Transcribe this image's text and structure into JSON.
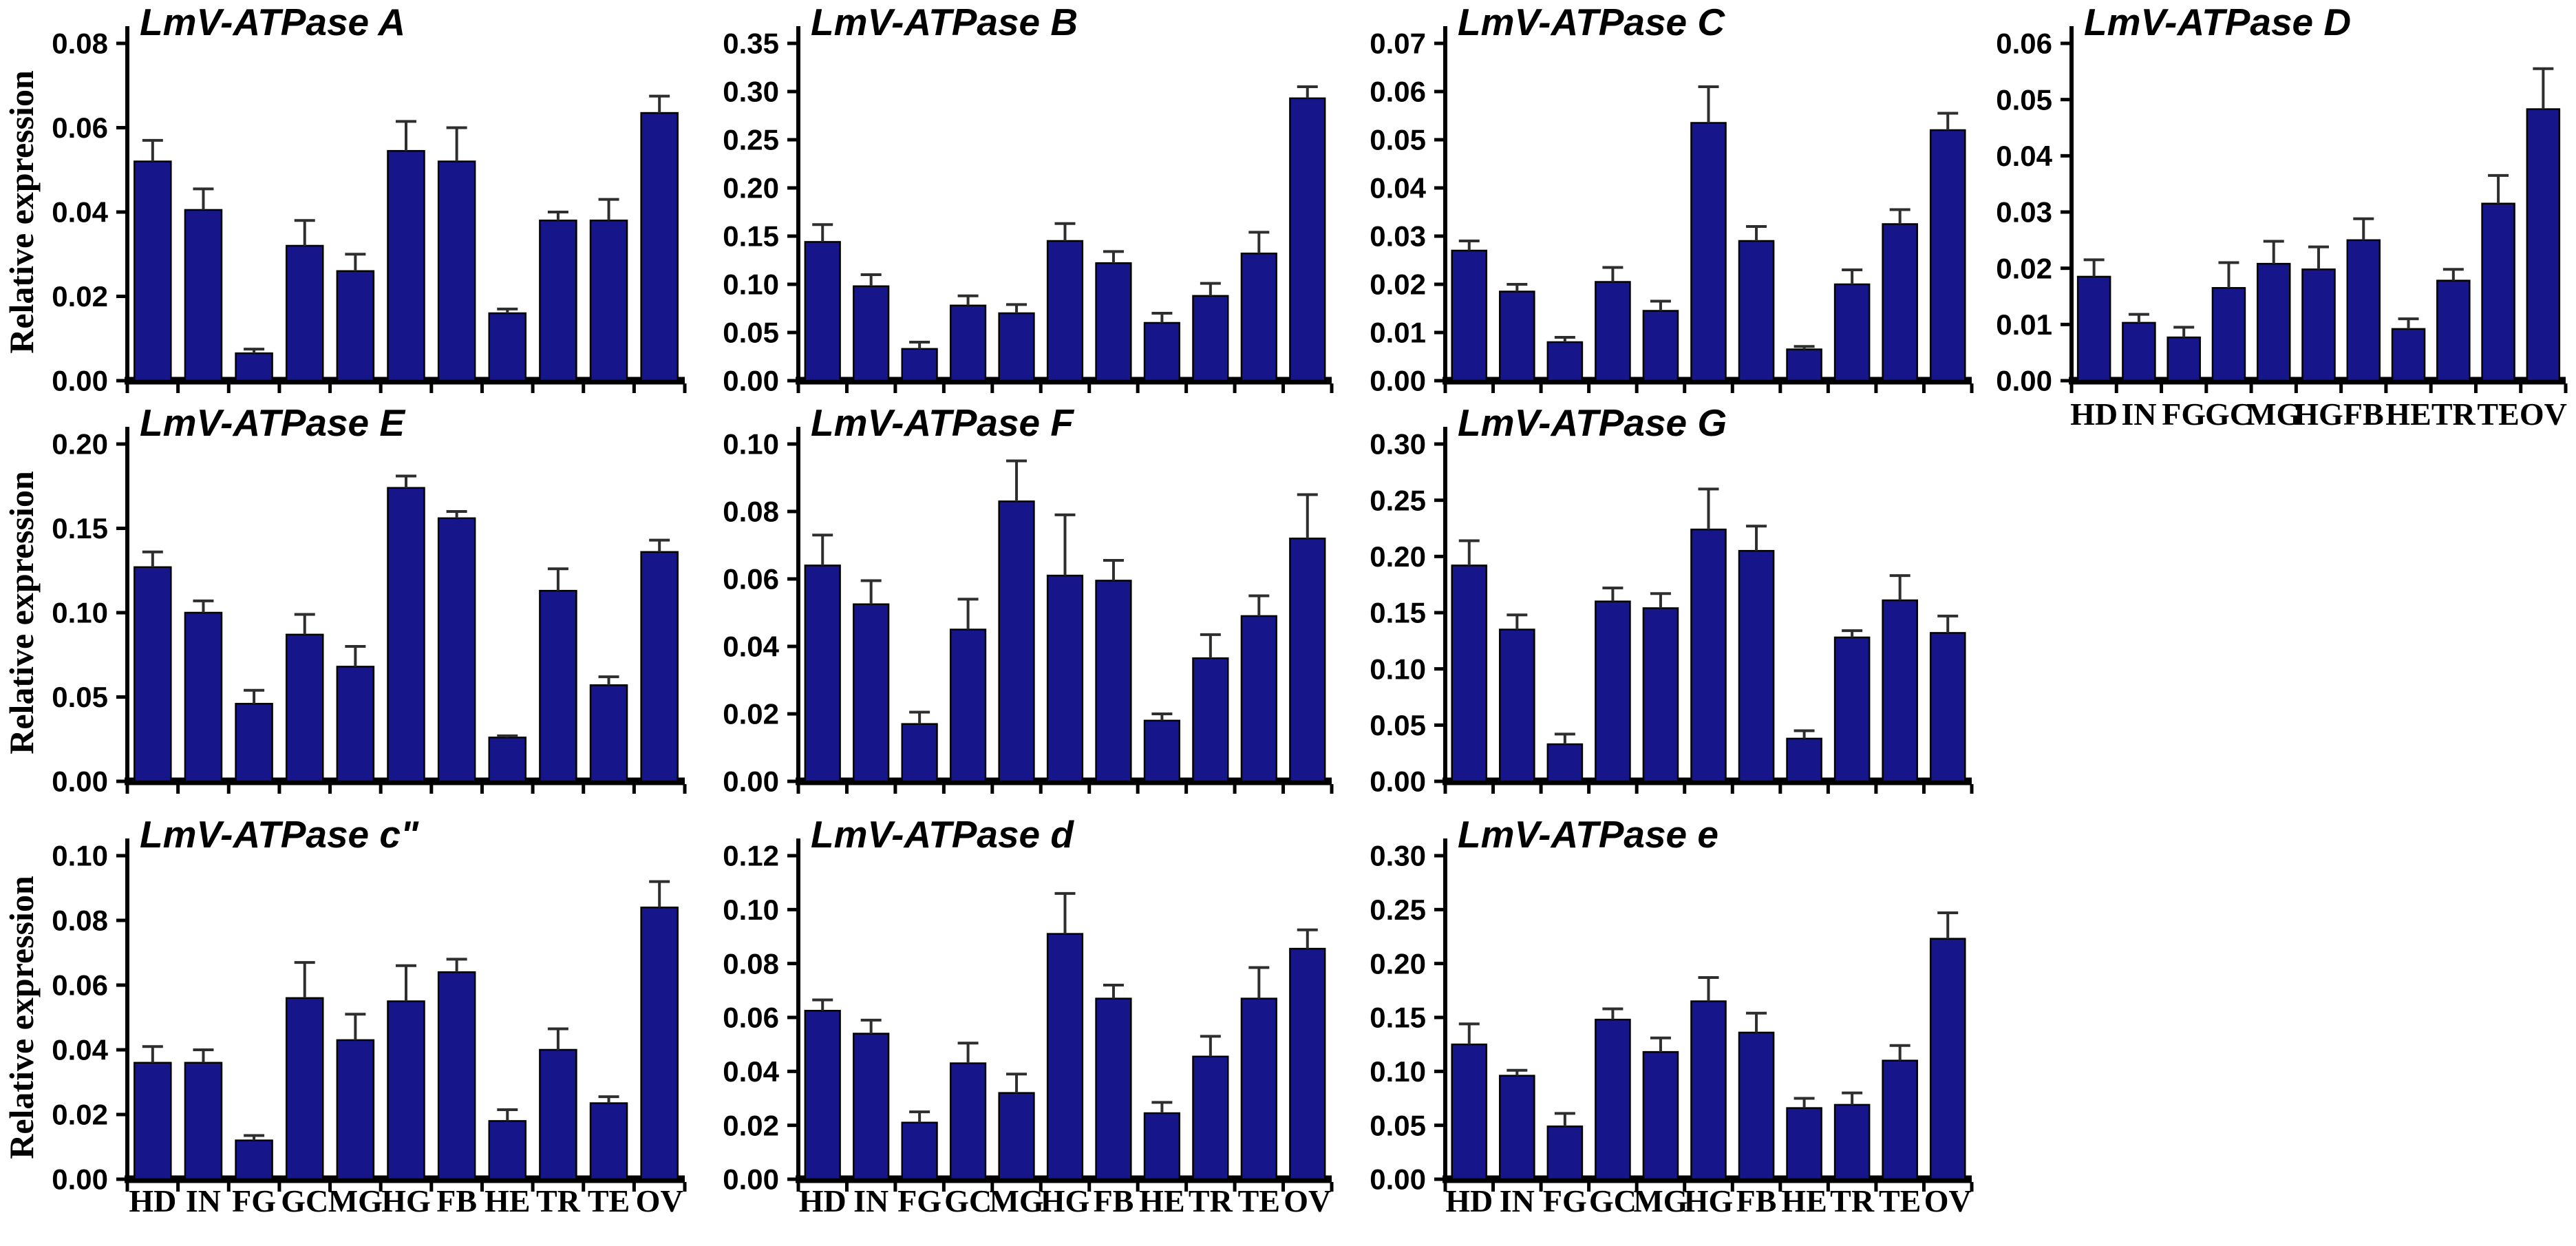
{
  "figure": {
    "ylabel": "Relative expression",
    "bar_color": "#16168a",
    "bar_stroke": "#000000",
    "error_color": "#2e2e2e",
    "axis_color": "#000000",
    "background": "#ffffff",
    "categories": [
      "HD",
      "IN",
      "FG",
      "GC",
      "MG",
      "HG",
      "FB",
      "HE",
      "TR",
      "TE",
      "OV"
    ]
  },
  "chart_data": [
    {
      "type": "bar",
      "id": "A",
      "title": "LmV-ATPase A",
      "col": 0,
      "row": 0,
      "show_ylabel": true,
      "show_xlabels": false,
      "ylim": [
        0,
        0.08
      ],
      "ytick_step": 0.02,
      "values": [
        0.052,
        0.0405,
        0.0065,
        0.032,
        0.026,
        0.0545,
        0.052,
        0.016,
        0.038,
        0.038,
        0.0635
      ],
      "errors": [
        0.005,
        0.005,
        0.001,
        0.006,
        0.004,
        0.007,
        0.008,
        0.001,
        0.002,
        0.005,
        0.004
      ]
    },
    {
      "type": "bar",
      "id": "B",
      "title": "LmV-ATPase B",
      "col": 1,
      "row": 0,
      "show_ylabel": false,
      "show_xlabels": false,
      "ylim": [
        0,
        0.35
      ],
      "ytick_step": 0.05,
      "values": [
        0.144,
        0.098,
        0.033,
        0.078,
        0.07,
        0.145,
        0.122,
        0.06,
        0.088,
        0.132,
        0.293
      ],
      "errors": [
        0.018,
        0.012,
        0.007,
        0.01,
        0.009,
        0.018,
        0.012,
        0.01,
        0.013,
        0.022,
        0.012
      ]
    },
    {
      "type": "bar",
      "id": "C",
      "title": "LmV-ATPase C",
      "col": 2,
      "row": 0,
      "show_ylabel": false,
      "show_xlabels": false,
      "ylim": [
        0,
        0.07
      ],
      "ytick_step": 0.01,
      "values": [
        0.027,
        0.0185,
        0.008,
        0.0205,
        0.0145,
        0.0535,
        0.029,
        0.0065,
        0.02,
        0.0325,
        0.052
      ],
      "errors": [
        0.002,
        0.0015,
        0.001,
        0.003,
        0.002,
        0.0075,
        0.003,
        0.0006,
        0.003,
        0.003,
        0.0035
      ]
    },
    {
      "type": "bar",
      "id": "D",
      "title": "LmV-ATPase D",
      "col": 3,
      "row": 0,
      "show_ylabel": false,
      "show_xlabels": true,
      "ylim": [
        0,
        0.06
      ],
      "ytick_step": 0.01,
      "values": [
        0.0185,
        0.0103,
        0.0077,
        0.0165,
        0.0208,
        0.0198,
        0.025,
        0.0092,
        0.0178,
        0.0315,
        0.0483
      ],
      "errors": [
        0.003,
        0.0015,
        0.0018,
        0.0045,
        0.004,
        0.004,
        0.0038,
        0.0018,
        0.002,
        0.005,
        0.0072
      ]
    },
    {
      "type": "bar",
      "id": "E",
      "title": "LmV-ATPase E",
      "col": 0,
      "row": 1,
      "show_ylabel": true,
      "show_xlabels": false,
      "ylim": [
        0,
        0.2
      ],
      "ytick_step": 0.05,
      "values": [
        0.127,
        0.1,
        0.046,
        0.087,
        0.068,
        0.174,
        0.156,
        0.026,
        0.113,
        0.057,
        0.136
      ],
      "errors": [
        0.009,
        0.007,
        0.008,
        0.012,
        0.012,
        0.007,
        0.004,
        0.001,
        0.013,
        0.005,
        0.007
      ]
    },
    {
      "type": "bar",
      "id": "F",
      "title": "LmV-ATPase F",
      "col": 1,
      "row": 1,
      "show_ylabel": false,
      "show_xlabels": false,
      "ylim": [
        0,
        0.1
      ],
      "ytick_step": 0.02,
      "values": [
        0.064,
        0.0525,
        0.017,
        0.045,
        0.083,
        0.061,
        0.0595,
        0.018,
        0.0365,
        0.049,
        0.072
      ],
      "errors": [
        0.009,
        0.007,
        0.0035,
        0.009,
        0.012,
        0.018,
        0.006,
        0.002,
        0.007,
        0.006,
        0.013
      ]
    },
    {
      "type": "bar",
      "id": "G",
      "title": "LmV-ATPase G",
      "col": 2,
      "row": 1,
      "show_ylabel": false,
      "show_xlabels": false,
      "ylim": [
        0,
        0.3
      ],
      "ytick_step": 0.05,
      "values": [
        0.192,
        0.135,
        0.033,
        0.16,
        0.154,
        0.224,
        0.205,
        0.038,
        0.128,
        0.161,
        0.132
      ],
      "errors": [
        0.022,
        0.013,
        0.009,
        0.012,
        0.013,
        0.036,
        0.022,
        0.007,
        0.006,
        0.022,
        0.015
      ]
    },
    {
      "type": "bar",
      "id": "c2",
      "title": "LmV-ATPase c\"",
      "col": 0,
      "row": 2,
      "show_ylabel": true,
      "show_xlabels": true,
      "ylim": [
        0,
        0.1
      ],
      "ytick_step": 0.02,
      "values": [
        0.036,
        0.036,
        0.012,
        0.056,
        0.043,
        0.055,
        0.064,
        0.018,
        0.04,
        0.0235,
        0.084
      ],
      "errors": [
        0.005,
        0.004,
        0.0015,
        0.011,
        0.008,
        0.011,
        0.004,
        0.0035,
        0.0065,
        0.002,
        0.008
      ]
    },
    {
      "type": "bar",
      "id": "d",
      "title": "LmV-ATPase d",
      "col": 1,
      "row": 2,
      "show_ylabel": false,
      "show_xlabels": true,
      "ylim": [
        0,
        0.12
      ],
      "ytick_step": 0.02,
      "values": [
        0.0625,
        0.054,
        0.021,
        0.043,
        0.032,
        0.091,
        0.067,
        0.0245,
        0.0455,
        0.067,
        0.0855
      ],
      "errors": [
        0.004,
        0.005,
        0.004,
        0.0075,
        0.007,
        0.015,
        0.005,
        0.004,
        0.0075,
        0.0115,
        0.007
      ]
    },
    {
      "type": "bar",
      "id": "e",
      "title": "LmV-ATPase e",
      "col": 2,
      "row": 2,
      "show_ylabel": false,
      "show_xlabels": true,
      "ylim": [
        0,
        0.3
      ],
      "ytick_step": 0.05,
      "values": [
        0.125,
        0.096,
        0.049,
        0.148,
        0.118,
        0.165,
        0.136,
        0.066,
        0.069,
        0.11,
        0.223
      ],
      "errors": [
        0.019,
        0.005,
        0.012,
        0.01,
        0.013,
        0.022,
        0.018,
        0.009,
        0.011,
        0.014,
        0.024
      ]
    }
  ],
  "layout_note": "10-panel bar figure of LmV-ATPase subunit relative expression across 11 locust tissues"
}
